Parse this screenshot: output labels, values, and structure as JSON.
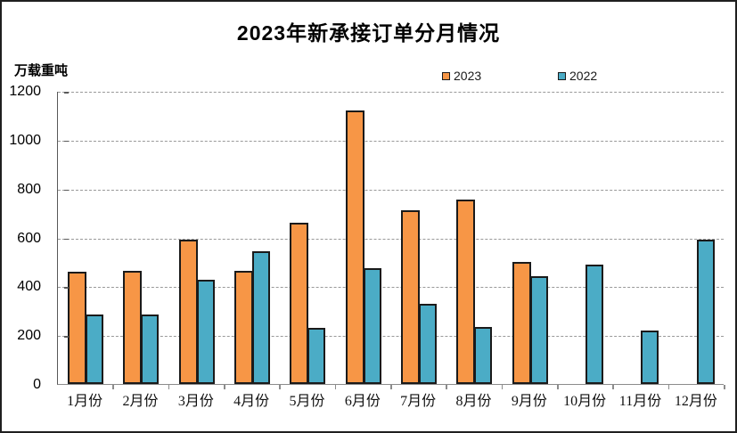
{
  "page": {
    "background": "#ffffff",
    "frame_border_color": "#1f1f1f"
  },
  "chart_data": {
    "type": "bar",
    "title": "2023年新承接订单分月情况",
    "ylabel": "万载重吨",
    "xlabel": "",
    "categories": [
      "1月份",
      "2月份",
      "3月份",
      "4月份",
      "5月份",
      "6月份",
      "7月份",
      "8月份",
      "9月份",
      "10月份",
      "11月份",
      "12月份"
    ],
    "series": [
      {
        "name": "2023",
        "color": "#F79646",
        "values": [
          460,
          465,
          590,
          465,
          660,
          1120,
          710,
          755,
          500,
          null,
          null,
          null
        ]
      },
      {
        "name": "2022",
        "color": "#4BACC6",
        "values": [
          285,
          285,
          425,
          545,
          230,
          475,
          330,
          235,
          440,
          490,
          220,
          590
        ]
      }
    ],
    "ylim": [
      0,
      1200
    ],
    "ytick_interval": 200,
    "y_ticks": [
      0,
      200,
      400,
      600,
      800,
      1000,
      1200
    ],
    "legend_position": "top-center",
    "grid": "horizontal-dashed",
    "grid_color": "#999999",
    "axis_color": "#595959",
    "bar_border_color": "#1a1a1a"
  }
}
